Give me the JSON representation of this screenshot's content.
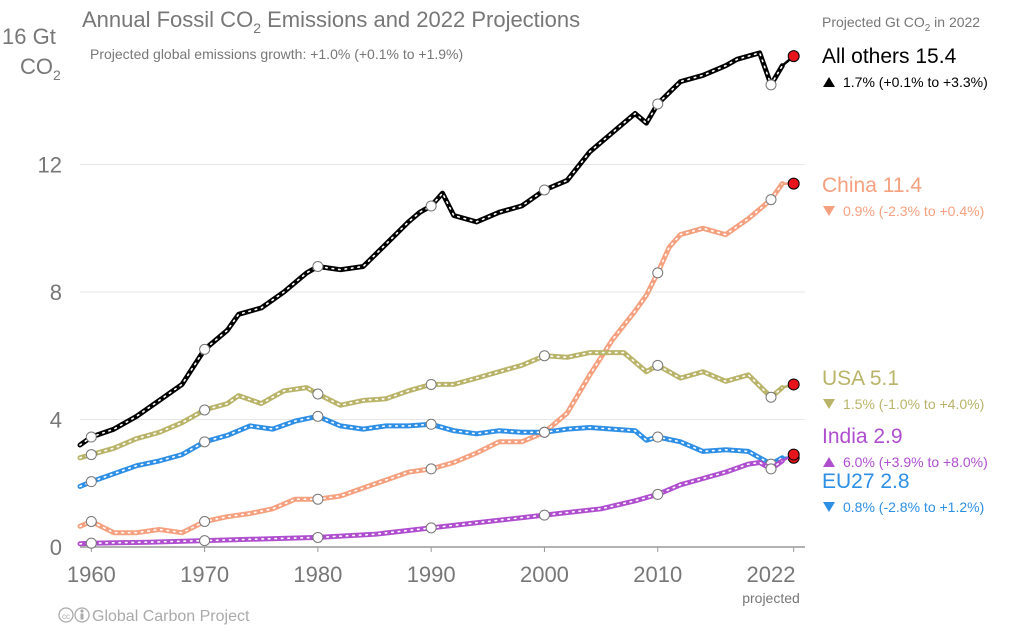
{
  "header": {
    "title": "Annual Fossil CO",
    "title_sub": "2",
    "title_rest": " Emissions and 2022 Projections",
    "subtitle": "Projected global emissions growth: +1.0% (+0.1% to +1.9%)",
    "y_unit_line1": "16 Gt",
    "y_unit_line2": "CO",
    "y_unit_sub": "2",
    "legend_header": "Projected Gt CO",
    "legend_header_sub": "2",
    "legend_header_rest": " in 2022",
    "footer": "Global Carbon Project",
    "projected_label": "projected",
    "x_last_label": "2022"
  },
  "legend": [
    {
      "name": "All others 15.4",
      "growth": "1.7% (+0.1% to +3.3%)",
      "dir": "up",
      "color": "#000000"
    },
    {
      "name": "China 11.4",
      "growth": "0.9% (-2.3% to +0.4%)",
      "dir": "down",
      "color": "#f5a07f"
    },
    {
      "name": "USA 5.1",
      "growth": "1.5% (-1.0% to +4.0%)",
      "dir": "down",
      "color": "#b9b46a"
    },
    {
      "name": "India 2.9",
      "growth": "6.0% (+3.9% to +8.0%)",
      "dir": "up",
      "color": "#b04ed0"
    },
    {
      "name": "EU27 2.8",
      "growth": "0.8% (-2.8% to +1.2%)",
      "dir": "down",
      "color": "#2e8fe6"
    }
  ],
  "chart_data": {
    "type": "line",
    "title": "Annual Fossil CO2 Emissions and 2022 Projections",
    "ylabel": "Gt CO2",
    "ylim": [
      0,
      16
    ],
    "xlim": [
      1959,
      2023
    ],
    "y_ticks": [
      0,
      4,
      8,
      12
    ],
    "x_ticks": [
      1960,
      1970,
      1980,
      1990,
      2000,
      2010
    ],
    "grid": true,
    "series": [
      {
        "name": "All others",
        "color": "#000000",
        "points": [
          [
            1959,
            3.2
          ],
          [
            1960,
            3.45
          ],
          [
            1962,
            3.7
          ],
          [
            1964,
            4.1
          ],
          [
            1966,
            4.6
          ],
          [
            1968,
            5.1
          ],
          [
            1970,
            6.2
          ],
          [
            1972,
            6.8
          ],
          [
            1973,
            7.3
          ],
          [
            1975,
            7.5
          ],
          [
            1977,
            8.0
          ],
          [
            1979,
            8.6
          ],
          [
            1980,
            8.8
          ],
          [
            1982,
            8.7
          ],
          [
            1984,
            8.8
          ],
          [
            1986,
            9.5
          ],
          [
            1988,
            10.2
          ],
          [
            1989,
            10.5
          ],
          [
            1990,
            10.7
          ],
          [
            1991,
            11.1
          ],
          [
            1992,
            10.4
          ],
          [
            1994,
            10.2
          ],
          [
            1996,
            10.5
          ],
          [
            1998,
            10.7
          ],
          [
            2000,
            11.2
          ],
          [
            2002,
            11.5
          ],
          [
            2004,
            12.4
          ],
          [
            2006,
            13.0
          ],
          [
            2008,
            13.6
          ],
          [
            2009,
            13.3
          ],
          [
            2010,
            13.9
          ],
          [
            2012,
            14.6
          ],
          [
            2014,
            14.8
          ],
          [
            2016,
            15.1
          ],
          [
            2017,
            15.3
          ],
          [
            2019,
            15.5
          ],
          [
            2020,
            14.5
          ],
          [
            2021,
            15.1
          ],
          [
            2022,
            15.4
          ]
        ]
      },
      {
        "name": "China",
        "color": "#f5a07f",
        "points": [
          [
            1959,
            0.65
          ],
          [
            1960,
            0.8
          ],
          [
            1962,
            0.45
          ],
          [
            1964,
            0.45
          ],
          [
            1966,
            0.55
          ],
          [
            1968,
            0.45
          ],
          [
            1970,
            0.8
          ],
          [
            1972,
            0.95
          ],
          [
            1974,
            1.05
          ],
          [
            1976,
            1.2
          ],
          [
            1978,
            1.5
          ],
          [
            1980,
            1.5
          ],
          [
            1982,
            1.6
          ],
          [
            1984,
            1.85
          ],
          [
            1986,
            2.1
          ],
          [
            1988,
            2.35
          ],
          [
            1990,
            2.45
          ],
          [
            1992,
            2.65
          ],
          [
            1994,
            2.95
          ],
          [
            1996,
            3.3
          ],
          [
            1998,
            3.3
          ],
          [
            2000,
            3.6
          ],
          [
            2002,
            4.2
          ],
          [
            2004,
            5.4
          ],
          [
            2006,
            6.5
          ],
          [
            2008,
            7.4
          ],
          [
            2009,
            7.9
          ],
          [
            2010,
            8.6
          ],
          [
            2011,
            9.4
          ],
          [
            2012,
            9.8
          ],
          [
            2014,
            10.0
          ],
          [
            2016,
            9.8
          ],
          [
            2018,
            10.3
          ],
          [
            2020,
            10.9
          ],
          [
            2021,
            11.4
          ],
          [
            2022,
            11.4
          ]
        ]
      },
      {
        "name": "USA",
        "color": "#b9b46a",
        "points": [
          [
            1959,
            2.8
          ],
          [
            1960,
            2.9
          ],
          [
            1962,
            3.1
          ],
          [
            1964,
            3.4
          ],
          [
            1966,
            3.6
          ],
          [
            1968,
            3.9
          ],
          [
            1970,
            4.3
          ],
          [
            1972,
            4.5
          ],
          [
            1973,
            4.75
          ],
          [
            1975,
            4.5
          ],
          [
            1977,
            4.9
          ],
          [
            1979,
            5.0
          ],
          [
            1980,
            4.8
          ],
          [
            1982,
            4.45
          ],
          [
            1984,
            4.6
          ],
          [
            1986,
            4.65
          ],
          [
            1988,
            4.9
          ],
          [
            1990,
            5.1
          ],
          [
            1992,
            5.1
          ],
          [
            1994,
            5.3
          ],
          [
            1996,
            5.5
          ],
          [
            1998,
            5.7
          ],
          [
            2000,
            6.0
          ],
          [
            2002,
            5.95
          ],
          [
            2004,
            6.1
          ],
          [
            2007,
            6.1
          ],
          [
            2009,
            5.5
          ],
          [
            2010,
            5.7
          ],
          [
            2012,
            5.3
          ],
          [
            2014,
            5.5
          ],
          [
            2016,
            5.2
          ],
          [
            2018,
            5.4
          ],
          [
            2020,
            4.7
          ],
          [
            2021,
            5.0
          ],
          [
            2022,
            5.1
          ]
        ]
      },
      {
        "name": "EU27",
        "color": "#2e8fe6",
        "points": [
          [
            1959,
            1.9
          ],
          [
            1960,
            2.05
          ],
          [
            1962,
            2.3
          ],
          [
            1964,
            2.55
          ],
          [
            1966,
            2.7
          ],
          [
            1968,
            2.9
          ],
          [
            1970,
            3.3
          ],
          [
            1972,
            3.5
          ],
          [
            1974,
            3.8
          ],
          [
            1976,
            3.7
          ],
          [
            1978,
            3.95
          ],
          [
            1980,
            4.1
          ],
          [
            1982,
            3.8
          ],
          [
            1984,
            3.7
          ],
          [
            1986,
            3.8
          ],
          [
            1988,
            3.8
          ],
          [
            1990,
            3.85
          ],
          [
            1992,
            3.65
          ],
          [
            1994,
            3.55
          ],
          [
            1996,
            3.65
          ],
          [
            1998,
            3.6
          ],
          [
            2000,
            3.6
          ],
          [
            2002,
            3.7
          ],
          [
            2004,
            3.75
          ],
          [
            2006,
            3.7
          ],
          [
            2008,
            3.65
          ],
          [
            2009,
            3.35
          ],
          [
            2010,
            3.45
          ],
          [
            2012,
            3.3
          ],
          [
            2014,
            3.0
          ],
          [
            2016,
            3.05
          ],
          [
            2018,
            3.0
          ],
          [
            2020,
            2.6
          ],
          [
            2021,
            2.8
          ],
          [
            2022,
            2.8
          ]
        ]
      },
      {
        "name": "India",
        "color": "#b04ed0",
        "points": [
          [
            1959,
            0.1
          ],
          [
            1960,
            0.12
          ],
          [
            1965,
            0.15
          ],
          [
            1970,
            0.2
          ],
          [
            1975,
            0.25
          ],
          [
            1980,
            0.3
          ],
          [
            1985,
            0.4
          ],
          [
            1990,
            0.6
          ],
          [
            1995,
            0.8
          ],
          [
            2000,
            1.0
          ],
          [
            2005,
            1.2
          ],
          [
            2008,
            1.45
          ],
          [
            2010,
            1.65
          ],
          [
            2012,
            1.95
          ],
          [
            2014,
            2.15
          ],
          [
            2016,
            2.35
          ],
          [
            2018,
            2.6
          ],
          [
            2019,
            2.65
          ],
          [
            2020,
            2.45
          ],
          [
            2021,
            2.7
          ],
          [
            2022,
            2.9
          ]
        ]
      }
    ],
    "marker_years": [
      1960,
      1970,
      1980,
      1990,
      2000,
      2010,
      2020
    ],
    "projected_year": 2022
  }
}
